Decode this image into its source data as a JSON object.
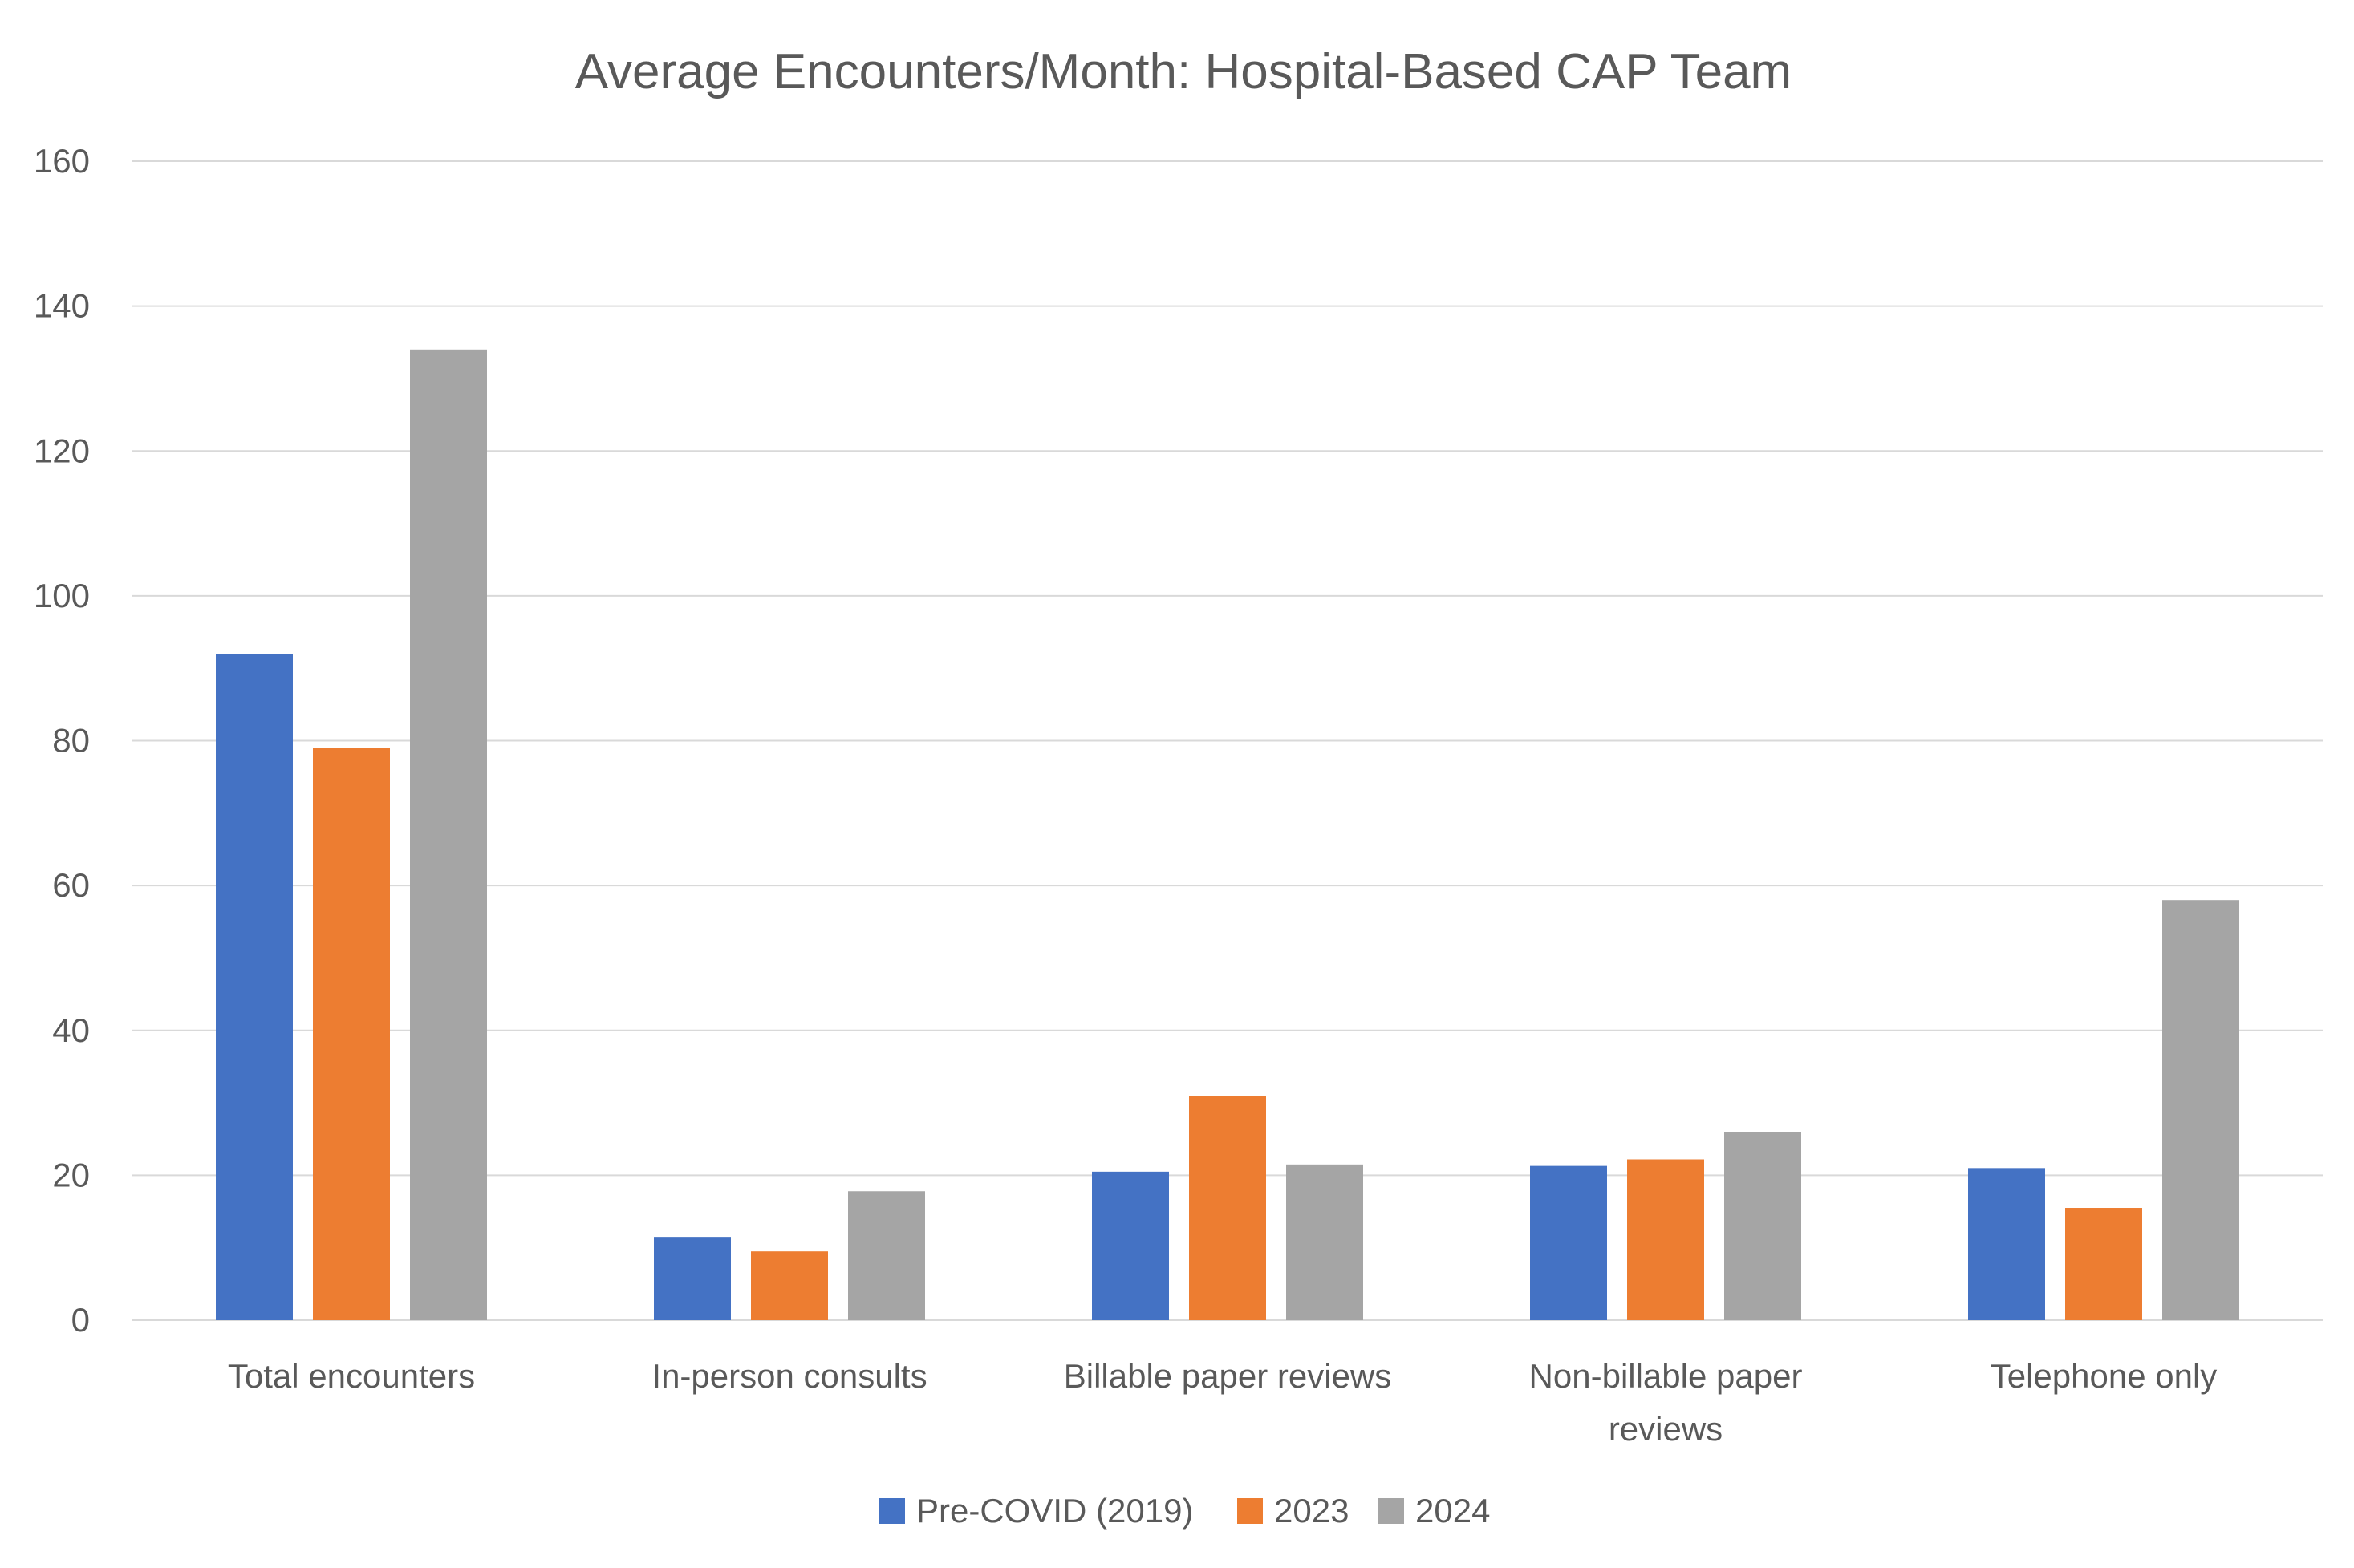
{
  "chart_data": {
    "type": "bar",
    "title": "Average Encounters/Month: Hospital-Based CAP Team",
    "xlabel": "",
    "ylabel": "",
    "ylim": [
      0,
      160
    ],
    "yticks": [
      "0",
      "20",
      "40",
      "60",
      "80",
      "100",
      "120",
      "140",
      "160"
    ],
    "categories": [
      [
        "Total encounters"
      ],
      [
        "In-person consults"
      ],
      [
        "Billable paper reviews"
      ],
      [
        "Non-billable paper",
        "reviews"
      ],
      [
        "Telephone only"
      ]
    ],
    "series": [
      {
        "name": "Pre-COVID (2019)",
        "color": "#4472c4",
        "values": [
          92,
          11.5,
          20.5,
          21.3,
          21
        ]
      },
      {
        "name": "2023",
        "color": "#ed7d31",
        "values": [
          79,
          9.5,
          31,
          22.2,
          15.5
        ]
      },
      {
        "name": "2024",
        "color": "#a5a5a5",
        "values": [
          134,
          17.8,
          21.5,
          26,
          58
        ]
      }
    ],
    "grid": true,
    "legend_position": "bottom"
  }
}
